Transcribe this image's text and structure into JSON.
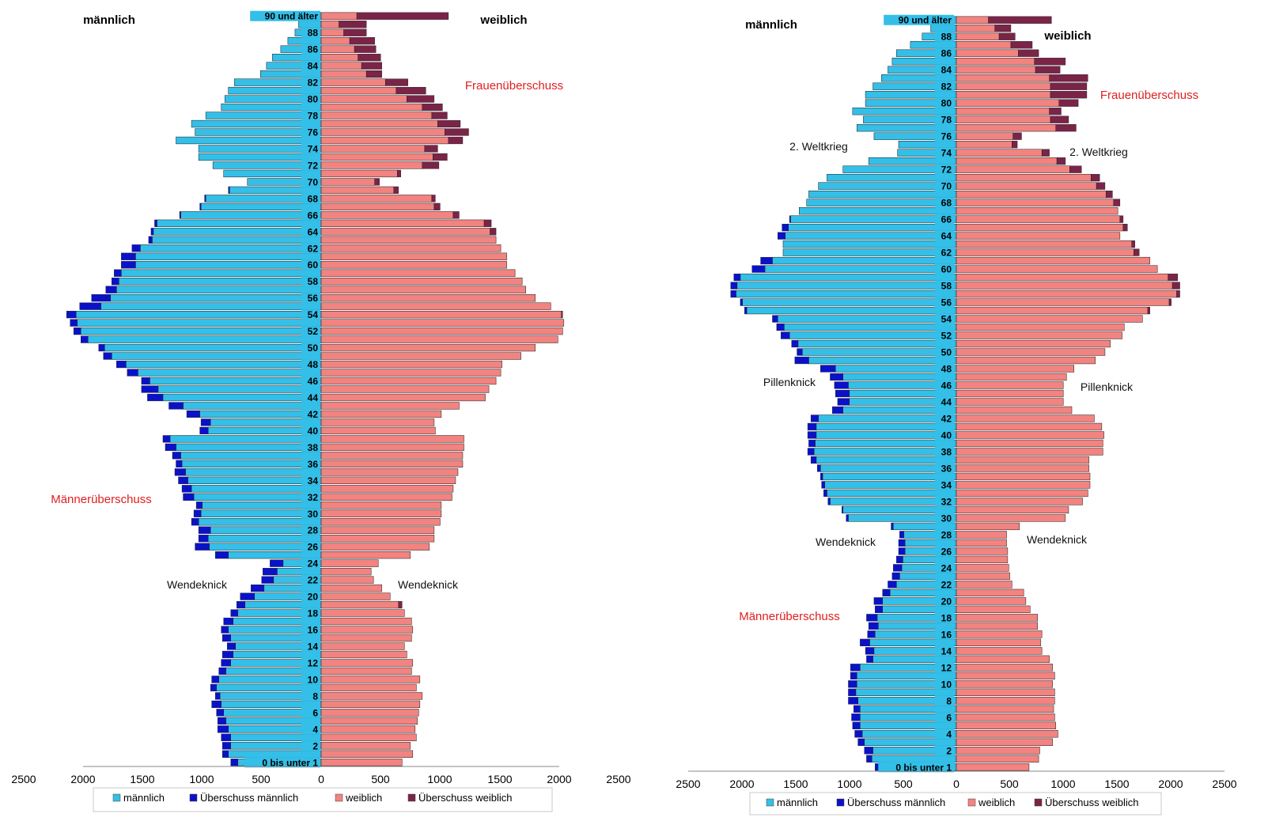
{
  "colors": {
    "male": "#33bfe8",
    "male_surplus": "#0a12c8",
    "female": "#f28380",
    "female_surplus": "#7a2448",
    "annotation_red": "#e02020",
    "bar_outline": "#1a1a1a"
  },
  "chart_data": [
    {
      "type": "bar",
      "orientation": "horizontal-pyramid",
      "male_label": "männlich",
      "female_label": "weiblich",
      "x_ticks": [
        "2500",
        "2000",
        "1500",
        "1000",
        "500",
        "0",
        "500",
        "1000",
        "1500",
        "2000",
        "2500"
      ],
      "xlim": [
        -2500,
        2500
      ],
      "age_labels": [
        "0 bis unter 1",
        "2",
        "4",
        "6",
        "8",
        "10",
        "12",
        "14",
        "16",
        "18",
        "20",
        "22",
        "24",
        "26",
        "28",
        "30",
        "32",
        "34",
        "36",
        "38",
        "40",
        "42",
        "44",
        "46",
        "48",
        "50",
        "52",
        "54",
        "56",
        "58",
        "60",
        "62",
        "64",
        "66",
        "68",
        "70",
        "72",
        "74",
        "76",
        "78",
        "80",
        "82",
        "84",
        "86",
        "88",
        "90 und älter"
      ],
      "ages": [
        0,
        1,
        2,
        3,
        4,
        5,
        6,
        7,
        8,
        9,
        10,
        11,
        12,
        13,
        14,
        15,
        16,
        17,
        18,
        19,
        20,
        21,
        22,
        23,
        24,
        25,
        26,
        27,
        28,
        29,
        30,
        31,
        32,
        33,
        34,
        35,
        36,
        37,
        38,
        39,
        40,
        41,
        42,
        43,
        44,
        45,
        46,
        47,
        48,
        49,
        50,
        51,
        52,
        53,
        54,
        55,
        56,
        57,
        58,
        59,
        60,
        61,
        62,
        63,
        64,
        65,
        66,
        67,
        68,
        69,
        70,
        71,
        72,
        73,
        74,
        75,
        76,
        77,
        78,
        79,
        80,
        81,
        82,
        83,
        84,
        85,
        86,
        87,
        88,
        89,
        90
      ],
      "series": [
        {
          "name": "männlich",
          "values": [
            700,
            780,
            760,
            760,
            780,
            800,
            820,
            840,
            850,
            880,
            860,
            800,
            760,
            740,
            720,
            760,
            780,
            740,
            700,
            640,
            560,
            480,
            400,
            370,
            320,
            780,
            940,
            950,
            930,
            1030,
            1010,
            1000,
            1070,
            1090,
            1120,
            1140,
            1170,
            1180,
            1220,
            1270,
            950,
            930,
            1020,
            1160,
            1330,
            1370,
            1440,
            1540,
            1640,
            1760,
            1820,
            1960,
            2020,
            2050,
            2060,
            1850,
            1770,
            1720,
            1700,
            1680,
            1560,
            1560,
            1520,
            1420,
            1410,
            1380,
            1180,
            1010,
            970,
            770,
            620,
            820,
            910,
            1030,
            1030,
            1220,
            1060,
            1090,
            970,
            840,
            810,
            780,
            730,
            510,
            460,
            410,
            340,
            280,
            220,
            190,
            310
          ]
        },
        {
          "name": "Überschuss männlich",
          "values": [
            60,
            50,
            70,
            80,
            90,
            70,
            60,
            80,
            40,
            50,
            60,
            60,
            80,
            90,
            70,
            70,
            60,
            80,
            60,
            70,
            120,
            110,
            100,
            120,
            110,
            110,
            120,
            80,
            100,
            60,
            60,
            50,
            90,
            80,
            80,
            90,
            50,
            70,
            90,
            60,
            70,
            80,
            110,
            120,
            130,
            140,
            70,
            90,
            80,
            70,
            50,
            60,
            60,
            60,
            80,
            180,
            160,
            90,
            60,
            60,
            120,
            120,
            70,
            30,
            20,
            20,
            10,
            10,
            10,
            10,
            0,
            0,
            0,
            0,
            0,
            0,
            0,
            0,
            0,
            0,
            0,
            0,
            0,
            0,
            0,
            0,
            0,
            0,
            0,
            0,
            0
          ]
        },
        {
          "name": "weiblich",
          "values": [
            680,
            770,
            750,
            800,
            790,
            810,
            820,
            830,
            850,
            800,
            830,
            760,
            770,
            720,
            700,
            760,
            770,
            760,
            700,
            650,
            580,
            510,
            440,
            420,
            480,
            750,
            910,
            950,
            950,
            1000,
            1010,
            1010,
            1100,
            1110,
            1130,
            1150,
            1190,
            1190,
            1200,
            1200,
            960,
            950,
            1010,
            1160,
            1380,
            1410,
            1470,
            1510,
            1520,
            1680,
            1800,
            1990,
            2030,
            2040,
            2020,
            1930,
            1800,
            1720,
            1690,
            1630,
            1560,
            1560,
            1510,
            1470,
            1420,
            1370,
            1110,
            950,
            930,
            610,
            450,
            640,
            850,
            940,
            870,
            1070,
            1040,
            980,
            930,
            850,
            720,
            630,
            540,
            380,
            340,
            310,
            280,
            240,
            190,
            150,
            300
          ]
        },
        {
          "name": "Überschuss weiblich",
          "values": [
            0,
            0,
            0,
            0,
            0,
            0,
            0,
            0,
            0,
            0,
            0,
            0,
            0,
            0,
            0,
            0,
            0,
            0,
            0,
            30,
            0,
            0,
            0,
            0,
            0,
            0,
            0,
            0,
            0,
            0,
            0,
            0,
            0,
            0,
            0,
            0,
            0,
            0,
            0,
            0,
            0,
            0,
            0,
            0,
            0,
            0,
            0,
            0,
            0,
            0,
            0,
            0,
            0,
            0,
            10,
            0,
            0,
            0,
            0,
            0,
            0,
            0,
            0,
            0,
            50,
            60,
            50,
            50,
            30,
            40,
            40,
            30,
            140,
            120,
            110,
            120,
            200,
            190,
            130,
            170,
            230,
            250,
            190,
            130,
            170,
            190,
            180,
            210,
            190,
            230,
            770
          ]
        }
      ],
      "annotations_left": [
        "Frauenüberschuss",
        "Männerüberschuss",
        "Wendeknick",
        "Wendeknick"
      ],
      "legend": [
        "männlich",
        "Überschuss männlich",
        "weiblich",
        "Überschuss weiblich"
      ],
      "legend_position": "bottom"
    },
    {
      "type": "bar",
      "orientation": "horizontal-pyramid",
      "male_label": "männlich",
      "female_label": "weiblich",
      "x_ticks": [
        "2500",
        "2000",
        "1500",
        "1000",
        "500",
        "0",
        "500",
        "1000",
        "1500",
        "2000",
        "2500"
      ],
      "xlim": [
        -2500,
        2500
      ],
      "age_labels": [
        "0 bis unter 1",
        "2",
        "4",
        "6",
        "8",
        "10",
        "12",
        "14",
        "16",
        "18",
        "20",
        "22",
        "24",
        "26",
        "28",
        "30",
        "32",
        "34",
        "36",
        "38",
        "40",
        "42",
        "44",
        "46",
        "48",
        "50",
        "52",
        "54",
        "56",
        "58",
        "60",
        "62",
        "64",
        "66",
        "68",
        "70",
        "72",
        "74",
        "76",
        "78",
        "80",
        "82",
        "84",
        "86",
        "88",
        "90 und älter"
      ],
      "ages": [
        0,
        1,
        2,
        3,
        4,
        5,
        6,
        7,
        8,
        9,
        10,
        11,
        12,
        13,
        14,
        15,
        16,
        17,
        18,
        19,
        20,
        21,
        22,
        23,
        24,
        25,
        26,
        27,
        28,
        29,
        30,
        31,
        32,
        33,
        34,
        35,
        36,
        37,
        38,
        39,
        40,
        41,
        42,
        43,
        44,
        45,
        46,
        47,
        48,
        49,
        50,
        51,
        52,
        53,
        54,
        55,
        56,
        57,
        58,
        59,
        60,
        61,
        62,
        63,
        64,
        65,
        66,
        67,
        68,
        69,
        70,
        71,
        72,
        73,
        74,
        75,
        76,
        77,
        78,
        79,
        80,
        81,
        82,
        83,
        84,
        85,
        86,
        87,
        88,
        89,
        90
      ],
      "series": [
        {
          "name": "männlich",
          "values": [
            700,
            790,
            780,
            860,
            880,
            900,
            900,
            900,
            920,
            940,
            930,
            930,
            900,
            780,
            770,
            810,
            760,
            730,
            740,
            690,
            690,
            620,
            560,
            530,
            510,
            500,
            480,
            480,
            490,
            590,
            1010,
            1060,
            1180,
            1210,
            1230,
            1250,
            1270,
            1310,
            1330,
            1320,
            1310,
            1310,
            1290,
            1060,
            1000,
            1000,
            1010,
            1060,
            1130,
            1380,
            1440,
            1480,
            1560,
            1610,
            1670,
            1960,
            2000,
            2060,
            2050,
            2020,
            1790,
            1720,
            1620,
            1620,
            1600,
            1570,
            1550,
            1470,
            1400,
            1380,
            1290,
            1210,
            1060,
            820,
            550,
            540,
            770,
            930,
            870,
            970,
            850,
            850,
            780,
            700,
            640,
            600,
            560,
            430,
            320,
            240,
            110
          ]
        },
        {
          "name": "Überschuss männlich",
          "values": [
            60,
            50,
            80,
            60,
            70,
            70,
            80,
            60,
            90,
            70,
            80,
            60,
            90,
            60,
            80,
            90,
            70,
            90,
            100,
            70,
            80,
            70,
            80,
            70,
            80,
            60,
            60,
            60,
            40,
            20,
            20,
            10,
            20,
            30,
            30,
            20,
            30,
            50,
            60,
            60,
            80,
            80,
            70,
            100,
            110,
            130,
            130,
            120,
            140,
            130,
            50,
            60,
            80,
            70,
            50,
            20,
            20,
            50,
            60,
            60,
            120,
            110,
            0,
            0,
            70,
            60,
            10,
            0,
            0,
            0,
            0,
            0,
            0,
            0,
            0,
            0,
            0,
            0,
            0,
            0,
            0,
            0,
            0,
            0,
            0,
            0,
            0,
            0,
            0,
            0,
            0
          ]
        },
        {
          "name": "weiblich",
          "values": [
            680,
            770,
            780,
            900,
            950,
            930,
            920,
            910,
            920,
            920,
            900,
            920,
            900,
            870,
            800,
            790,
            800,
            760,
            760,
            690,
            650,
            630,
            520,
            500,
            490,
            480,
            480,
            470,
            470,
            590,
            1020,
            1050,
            1180,
            1230,
            1250,
            1250,
            1240,
            1240,
            1370,
            1370,
            1380,
            1360,
            1290,
            1080,
            1000,
            1000,
            1000,
            1030,
            1100,
            1300,
            1390,
            1440,
            1550,
            1570,
            1740,
            1790,
            1990,
            2060,
            2020,
            1980,
            1880,
            1810,
            1660,
            1640,
            1530,
            1560,
            1530,
            1510,
            1470,
            1400,
            1310,
            1260,
            1060,
            940,
            800,
            520,
            530,
            930,
            880,
            870,
            960,
            880,
            880,
            870,
            740,
            730,
            580,
            510,
            400,
            360,
            300
          ]
        },
        {
          "name": "Überschuss weiblich",
          "values": [
            0,
            0,
            0,
            0,
            0,
            0,
            0,
            0,
            0,
            0,
            0,
            0,
            0,
            0,
            0,
            0,
            0,
            0,
            0,
            0,
            0,
            0,
            0,
            0,
            0,
            0,
            0,
            0,
            0,
            0,
            0,
            0,
            0,
            0,
            0,
            0,
            0,
            0,
            0,
            0,
            0,
            0,
            0,
            0,
            0,
            0,
            0,
            0,
            0,
            0,
            0,
            0,
            0,
            0,
            0,
            20,
            20,
            30,
            70,
            90,
            0,
            0,
            50,
            30,
            0,
            40,
            30,
            0,
            60,
            60,
            80,
            80,
            110,
            80,
            70,
            50,
            80,
            190,
            170,
            110,
            180,
            340,
            340,
            360,
            230,
            290,
            190,
            200,
            150,
            150,
            590
          ]
        }
      ],
      "annotations_left": [
        "2. Weltkrieg",
        "Pillenknick",
        "Wendeknick",
        "Männerüberschuss"
      ],
      "annotations_right": [
        "Frauenüberschuss",
        "2. Weltkrieg",
        "Pillenknick",
        "Wendeknick"
      ],
      "legend": [
        "männlich",
        "Überschuss männlich",
        "weiblich",
        "Überschuss weiblich"
      ],
      "legend_position": "bottom"
    }
  ]
}
